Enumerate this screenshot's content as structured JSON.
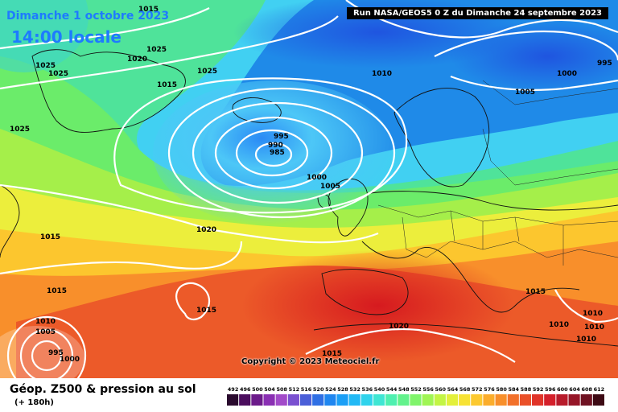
{
  "header": {
    "date": "Dimanche 1 octobre 2023",
    "time": "14:00 locale",
    "run": "Run NASA/GEOS5 0 Z du Dimanche 24 septembre 2023"
  },
  "copyright": "Copyright © 2023 Meteociel.fr",
  "footer": {
    "title": "Géop. Z500 & pression au sol",
    "subtitle": "(+ 180h)"
  },
  "scale": {
    "values": [
      "492",
      "496",
      "500",
      "504",
      "508",
      "512",
      "516",
      "520",
      "524",
      "528",
      "532",
      "536",
      "540",
      "544",
      "548",
      "552",
      "556",
      "560",
      "564",
      "568",
      "572",
      "576",
      "580",
      "584",
      "588",
      "592",
      "596",
      "600",
      "604",
      "608",
      "612"
    ],
    "colors": [
      "#2a0a2e",
      "#4b0d5e",
      "#6b1a8a",
      "#8a2fb3",
      "#a24ac9",
      "#7a50d0",
      "#4b5fd8",
      "#2f6fe4",
      "#1f86f0",
      "#1b9ff6",
      "#22b9f5",
      "#2fd3ec",
      "#3fe6d3",
      "#4ff0b0",
      "#63f28c",
      "#80f46b",
      "#a0f554",
      "#c3f544",
      "#e3f03a",
      "#f7e235",
      "#fcc930",
      "#fbad2c",
      "#f88f2b",
      "#f2702a",
      "#ea5029",
      "#e03328",
      "#d41f2a",
      "#b71a2a",
      "#961628",
      "#6f1222",
      "#3d0a14"
    ]
  },
  "isobars": [
    "1015",
    "1025",
    "1020",
    "1025",
    "1025",
    "1015",
    "1025",
    "1025",
    "1010",
    "995",
    "1000",
    "995",
    "990",
    "985",
    "1000",
    "1005",
    "1005",
    "1015",
    "1020",
    "1015",
    "1010",
    "1005",
    "1015",
    "995",
    "1000",
    "1020",
    "1015",
    "1015",
    "1010",
    "1010",
    "1010",
    "1010"
  ]
}
